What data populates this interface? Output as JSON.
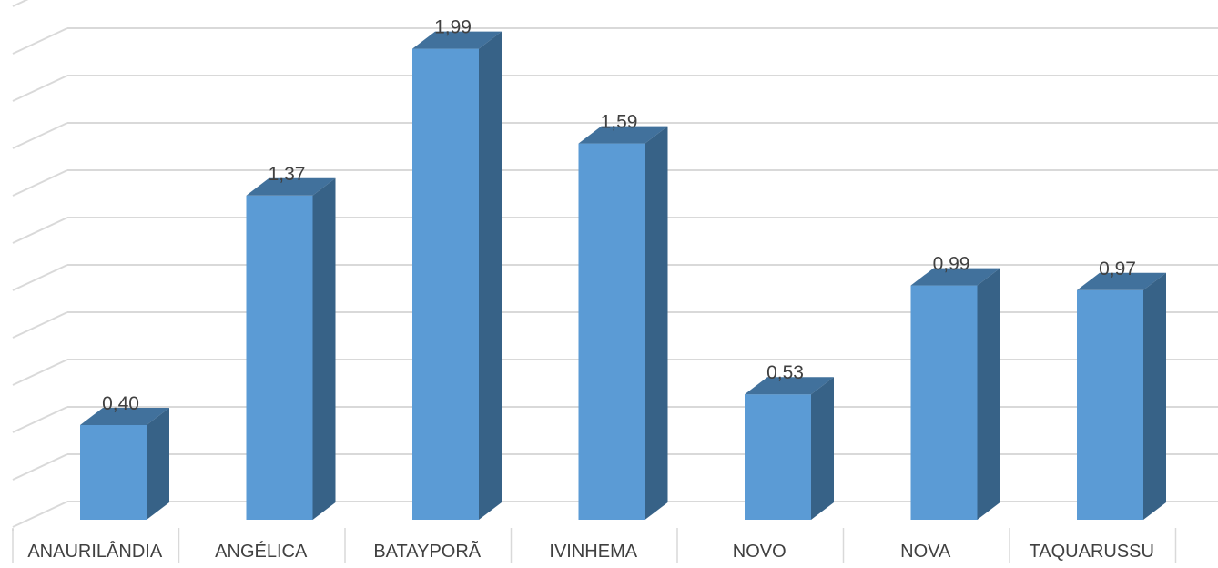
{
  "chart_data": {
    "type": "bar",
    "title": "",
    "xlabel": "",
    "ylabel": "",
    "categories": [
      "ANAURILÂNDIA",
      "ANGÉLICA",
      "BATAYPORÃ",
      "IVINHEMA",
      "NOVO",
      "NOVA",
      "TAQUARUSSU"
    ],
    "values": [
      0.4,
      1.37,
      1.99,
      1.59,
      0.53,
      0.99,
      0.97
    ],
    "data_labels": [
      "0,40",
      "1,37",
      "1,99",
      "1,59",
      "0,53",
      "0,99",
      "0,97"
    ],
    "ylim": [
      0,
      2.2
    ],
    "grid": true,
    "three_d": true,
    "colors": {
      "bar_front": "#5b9bd5",
      "bar_top": "#41719c",
      "bar_side": "#376287",
      "grid": "#d9d9d9",
      "text": "#404040"
    }
  }
}
